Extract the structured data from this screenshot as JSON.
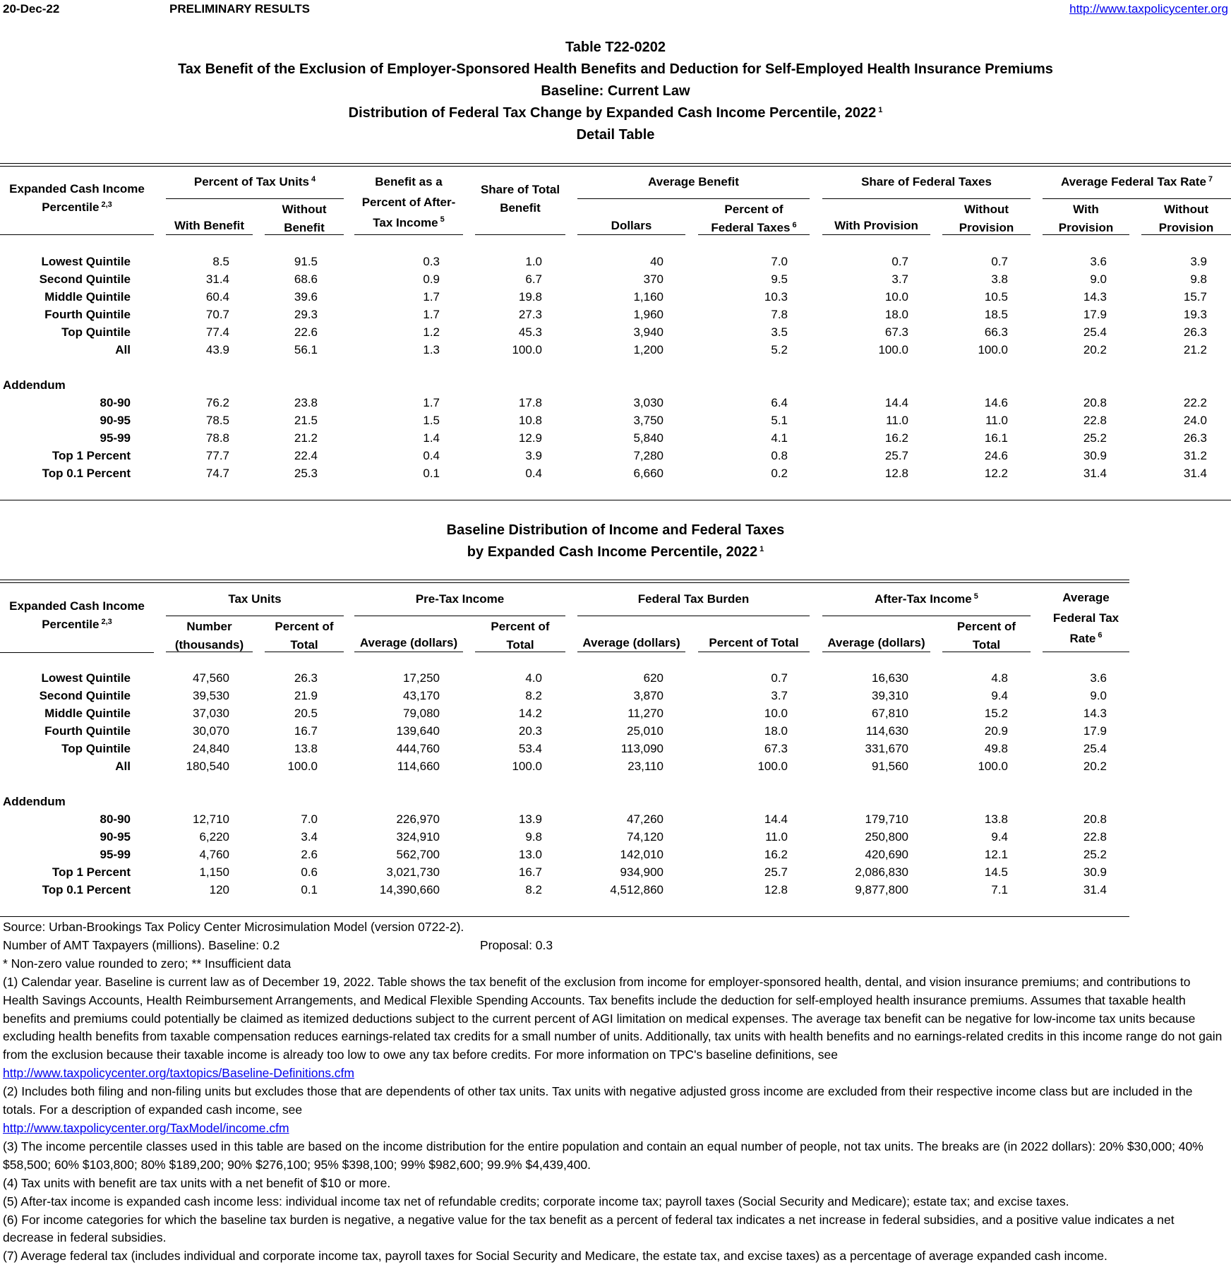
{
  "top": {
    "date": "20-Dec-22",
    "status": "PRELIMINARY RESULTS",
    "link": "http://www.taxpolicycenter.org"
  },
  "titles": {
    "table_id": "Table T22-0202",
    "main": "Tax Benefit of the Exclusion of Employer-Sponsored Health Benefits and Deduction for Self-Employed Health Insurance Premiums",
    "baseline": "Baseline: Current Law",
    "distribution": "Distribution of Federal Tax Change by Expanded Cash Income Percentile, 2022",
    "distribution_sup": "1",
    "detail": "Detail Table"
  },
  "table1": {
    "headers": {
      "label_l1": "Expanded Cash Income",
      "label_l2": "Percentile",
      "label_sup": "2,3",
      "units_group": "Percent of Tax Units",
      "units_sup": "4",
      "with_benefit": "With Benefit",
      "without_benefit_l1": "Without",
      "without_benefit_l2": "Benefit",
      "benefit_pct_l1": "Benefit as a",
      "benefit_pct_l2": "Percent of After-",
      "benefit_pct_l3": "Tax Income",
      "benefit_pct_sup": "5",
      "share_total_l1": "Share of Total",
      "share_total_l2": "Benefit",
      "avg_benefit_group": "Average Benefit",
      "dollars": "Dollars",
      "pct_fed_l1": "Percent of",
      "pct_fed_l2": "Federal Taxes",
      "pct_fed_sup": "6",
      "share_fed_group": "Share of Federal Taxes",
      "with_provision": "With Provision",
      "without_provision_l1": "Without",
      "without_provision_l2": "Provision",
      "rate_group": "Average Federal Tax Rate",
      "rate_sup": "7",
      "rate_with_l1": "With",
      "rate_with_l2": "Provision",
      "rate_without_l1": "Without",
      "rate_without_l2": "Provision"
    },
    "rows": [
      [
        "Lowest Quintile",
        "8.5",
        "91.5",
        "0.3",
        "1.0",
        "40",
        "7.0",
        "0.7",
        "0.7",
        "3.6",
        "3.9"
      ],
      [
        "Second Quintile",
        "31.4",
        "68.6",
        "0.9",
        "6.7",
        "370",
        "9.5",
        "3.7",
        "3.8",
        "9.0",
        "9.8"
      ],
      [
        "Middle Quintile",
        "60.4",
        "39.6",
        "1.7",
        "19.8",
        "1,160",
        "10.3",
        "10.0",
        "10.5",
        "14.3",
        "15.7"
      ],
      [
        "Fourth Quintile",
        "70.7",
        "29.3",
        "1.7",
        "27.3",
        "1,960",
        "7.8",
        "18.0",
        "18.5",
        "17.9",
        "19.3"
      ],
      [
        "Top Quintile",
        "77.4",
        "22.6",
        "1.2",
        "45.3",
        "3,940",
        "3.5",
        "67.3",
        "66.3",
        "25.4",
        "26.3"
      ],
      [
        "All",
        "43.9",
        "56.1",
        "1.3",
        "100.0",
        "1,200",
        "5.2",
        "100.0",
        "100.0",
        "20.2",
        "21.2"
      ]
    ],
    "addendum_label": "Addendum",
    "addendum_rows": [
      [
        "80-90",
        "76.2",
        "23.8",
        "1.7",
        "17.8",
        "3,030",
        "6.4",
        "14.4",
        "14.6",
        "20.8",
        "22.2"
      ],
      [
        "90-95",
        "78.5",
        "21.5",
        "1.5",
        "10.8",
        "3,750",
        "5.1",
        "11.0",
        "11.0",
        "22.8",
        "24.0"
      ],
      [
        "95-99",
        "78.8",
        "21.2",
        "1.4",
        "12.9",
        "5,840",
        "4.1",
        "16.2",
        "16.1",
        "25.2",
        "26.3"
      ],
      [
        "Top 1 Percent",
        "77.7",
        "22.4",
        "0.4",
        "3.9",
        "7,280",
        "0.8",
        "25.7",
        "24.6",
        "30.9",
        "31.2"
      ],
      [
        "Top 0.1 Percent",
        "74.7",
        "25.3",
        "0.1",
        "0.4",
        "6,660",
        "0.2",
        "12.8",
        "12.2",
        "31.4",
        "31.4"
      ]
    ]
  },
  "section2": {
    "title_l1": "Baseline Distribution of Income and Federal Taxes",
    "title_l2": "by Expanded Cash Income Percentile, 2022",
    "title_sup": "1"
  },
  "table2": {
    "headers": {
      "label_l1": "Expanded Cash Income",
      "label_l2": "Percentile",
      "label_sup": "2,3",
      "units_group": "Tax Units",
      "number_l1": "Number",
      "number_l2": "(thousands)",
      "pct_total_l1": "Percent of",
      "pct_total_l2": "Total",
      "pretax_group": "Pre-Tax Income",
      "pretax_avg": "Average (dollars)",
      "pretax_pct_l1": "Percent of",
      "pretax_pct_l2": "Total",
      "burden_group": "Federal Tax Burden",
      "burden_avg": "Average (dollars)",
      "burden_pct": "Percent of Total",
      "aftertax_group": "After-Tax Income",
      "aftertax_sup": "5",
      "aftertax_avg": "Average (dollars)",
      "aftertax_pct_l1": "Percent of",
      "aftertax_pct_l2": "Total",
      "rate_l1": "Average",
      "rate_l2": "Federal Tax",
      "rate_l3": "Rate",
      "rate_sup": "6"
    },
    "rows": [
      [
        "Lowest Quintile",
        "47,560",
        "26.3",
        "17,250",
        "4.0",
        "620",
        "0.7",
        "16,630",
        "4.8",
        "3.6"
      ],
      [
        "Second Quintile",
        "39,530",
        "21.9",
        "43,170",
        "8.2",
        "3,870",
        "3.7",
        "39,310",
        "9.4",
        "9.0"
      ],
      [
        "Middle Quintile",
        "37,030",
        "20.5",
        "79,080",
        "14.2",
        "11,270",
        "10.0",
        "67,810",
        "15.2",
        "14.3"
      ],
      [
        "Fourth Quintile",
        "30,070",
        "16.7",
        "139,640",
        "20.3",
        "25,010",
        "18.0",
        "114,630",
        "20.9",
        "17.9"
      ],
      [
        "Top Quintile",
        "24,840",
        "13.8",
        "444,760",
        "53.4",
        "113,090",
        "67.3",
        "331,670",
        "49.8",
        "25.4"
      ],
      [
        "All",
        "180,540",
        "100.0",
        "114,660",
        "100.0",
        "23,110",
        "100.0",
        "91,560",
        "100.0",
        "20.2"
      ]
    ],
    "addendum_label": "Addendum",
    "addendum_rows": [
      [
        "80-90",
        "12,710",
        "7.0",
        "226,970",
        "13.9",
        "47,260",
        "14.4",
        "179,710",
        "13.8",
        "20.8"
      ],
      [
        "90-95",
        "6,220",
        "3.4",
        "324,910",
        "9.8",
        "74,120",
        "11.0",
        "250,800",
        "9.4",
        "22.8"
      ],
      [
        "95-99",
        "4,760",
        "2.6",
        "562,700",
        "13.0",
        "142,010",
        "16.2",
        "420,690",
        "12.1",
        "25.2"
      ],
      [
        "Top 1 Percent",
        "1,150",
        "0.6",
        "3,021,730",
        "16.7",
        "934,900",
        "25.7",
        "2,086,830",
        "14.5",
        "30.9"
      ],
      [
        "Top 0.1 Percent",
        "120",
        "0.1",
        "14,390,660",
        "8.2",
        "4,512,860",
        "12.8",
        "9,877,800",
        "7.1",
        "31.4"
      ]
    ]
  },
  "footnotes": {
    "source": "Source: Urban-Brookings Tax Policy Center Microsimulation Model (version 0722-2).",
    "amt_baseline": "Number of AMT Taxpayers (millions).  Baseline: 0.2",
    "amt_proposal": "Proposal: 0.3",
    "legend": "* Non-zero value rounded to zero; ** Insufficient data",
    "n1": "(1) Calendar year. Baseline is current law as of December 19, 2022. Table shows the tax benefit of the exclusion from income for employer-sponsored health, dental, and vision insurance premiums; and contributions to Health Savings Accounts, Health Reimbursement Arrangements, and Medical Flexible Spending Accounts. Tax benefits include the deduction for self-employed health insurance premiums. Assumes that taxable health benefits and premiums could potentially be claimed as itemized deductions subject to the current percent of AGI limitation on medical expenses. The average tax benefit can be negative for low-income tax units because excluding health benefits from taxable compensation reduces earnings-related tax credits for a small number of units.  Additionally, tax units with health benefits and no earnings-related credits in this income range do not gain from the exclusion because their taxable income is already too low to owe any tax before credits. For more information on TPC's baseline definitions, see",
    "n1_link": "http://www.taxpolicycenter.org/taxtopics/Baseline-Definitions.cfm",
    "n2": "(2) Includes both filing and non-filing units but excludes those that are dependents of other tax units. Tax units with negative adjusted gross income are excluded from their respective income class but are included in the totals. For a description of expanded cash income, see",
    "n2_link": "http://www.taxpolicycenter.org/TaxModel/income.cfm",
    "n3": "(3) The income percentile classes used in this table are based on the income distribution for the entire population and contain an equal number of people, not tax units. The breaks are (in 2022 dollars): 20% $30,000; 40% $58,500; 60% $103,800; 80% $189,200; 90% $276,100; 95% $398,100; 99% $982,600; 99.9% $4,439,400.",
    "n4": "(4) Tax units with benefit are tax units with a net benefit of $10 or more.",
    "n5": "(5) After-tax income is expanded cash income less: individual income tax net of refundable credits; corporate income tax; payroll taxes (Social Security and Medicare); estate tax; and excise taxes.",
    "n6": "(6) For income categories for which the baseline tax burden is negative, a negative value for the tax benefit as a percent of federal tax indicates a net increase in federal subsidies, and a positive value indicates a net decrease in federal subsidies.",
    "n7": "(7) Average federal tax (includes individual and corporate income tax, payroll taxes for Social Security and Medicare, the estate tax, and excise taxes) as a percentage of average expanded cash income."
  }
}
